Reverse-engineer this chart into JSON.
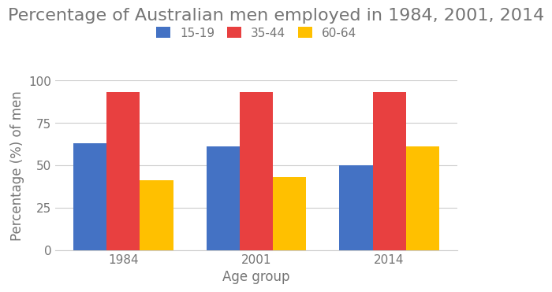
{
  "title": "Percentage of Australian men employed in 1984, 2001, 2014",
  "xlabel": "Age group",
  "ylabel": "Percentage (%) of men",
  "years": [
    "1984",
    "2001",
    "2014"
  ],
  "age_groups": [
    "15-19",
    "35-44",
    "60-64"
  ],
  "values": {
    "15-19": [
      63,
      61,
      50
    ],
    "35-44": [
      93,
      93,
      93
    ],
    "60-64": [
      41,
      43,
      61
    ]
  },
  "colors": {
    "15-19": "#4472C4",
    "35-44": "#E84040",
    "60-64": "#FFC000"
  },
  "ylim": [
    0,
    100
  ],
  "yticks": [
    0,
    25,
    50,
    75,
    100
  ],
  "bar_width": 0.25,
  "title_fontsize": 16,
  "axis_label_fontsize": 12,
  "tick_fontsize": 11,
  "legend_fontsize": 11,
  "background_color": "#ffffff",
  "grid_color": "#cccccc",
  "title_color": "#757575",
  "axis_label_color": "#757575",
  "tick_color": "#757575"
}
